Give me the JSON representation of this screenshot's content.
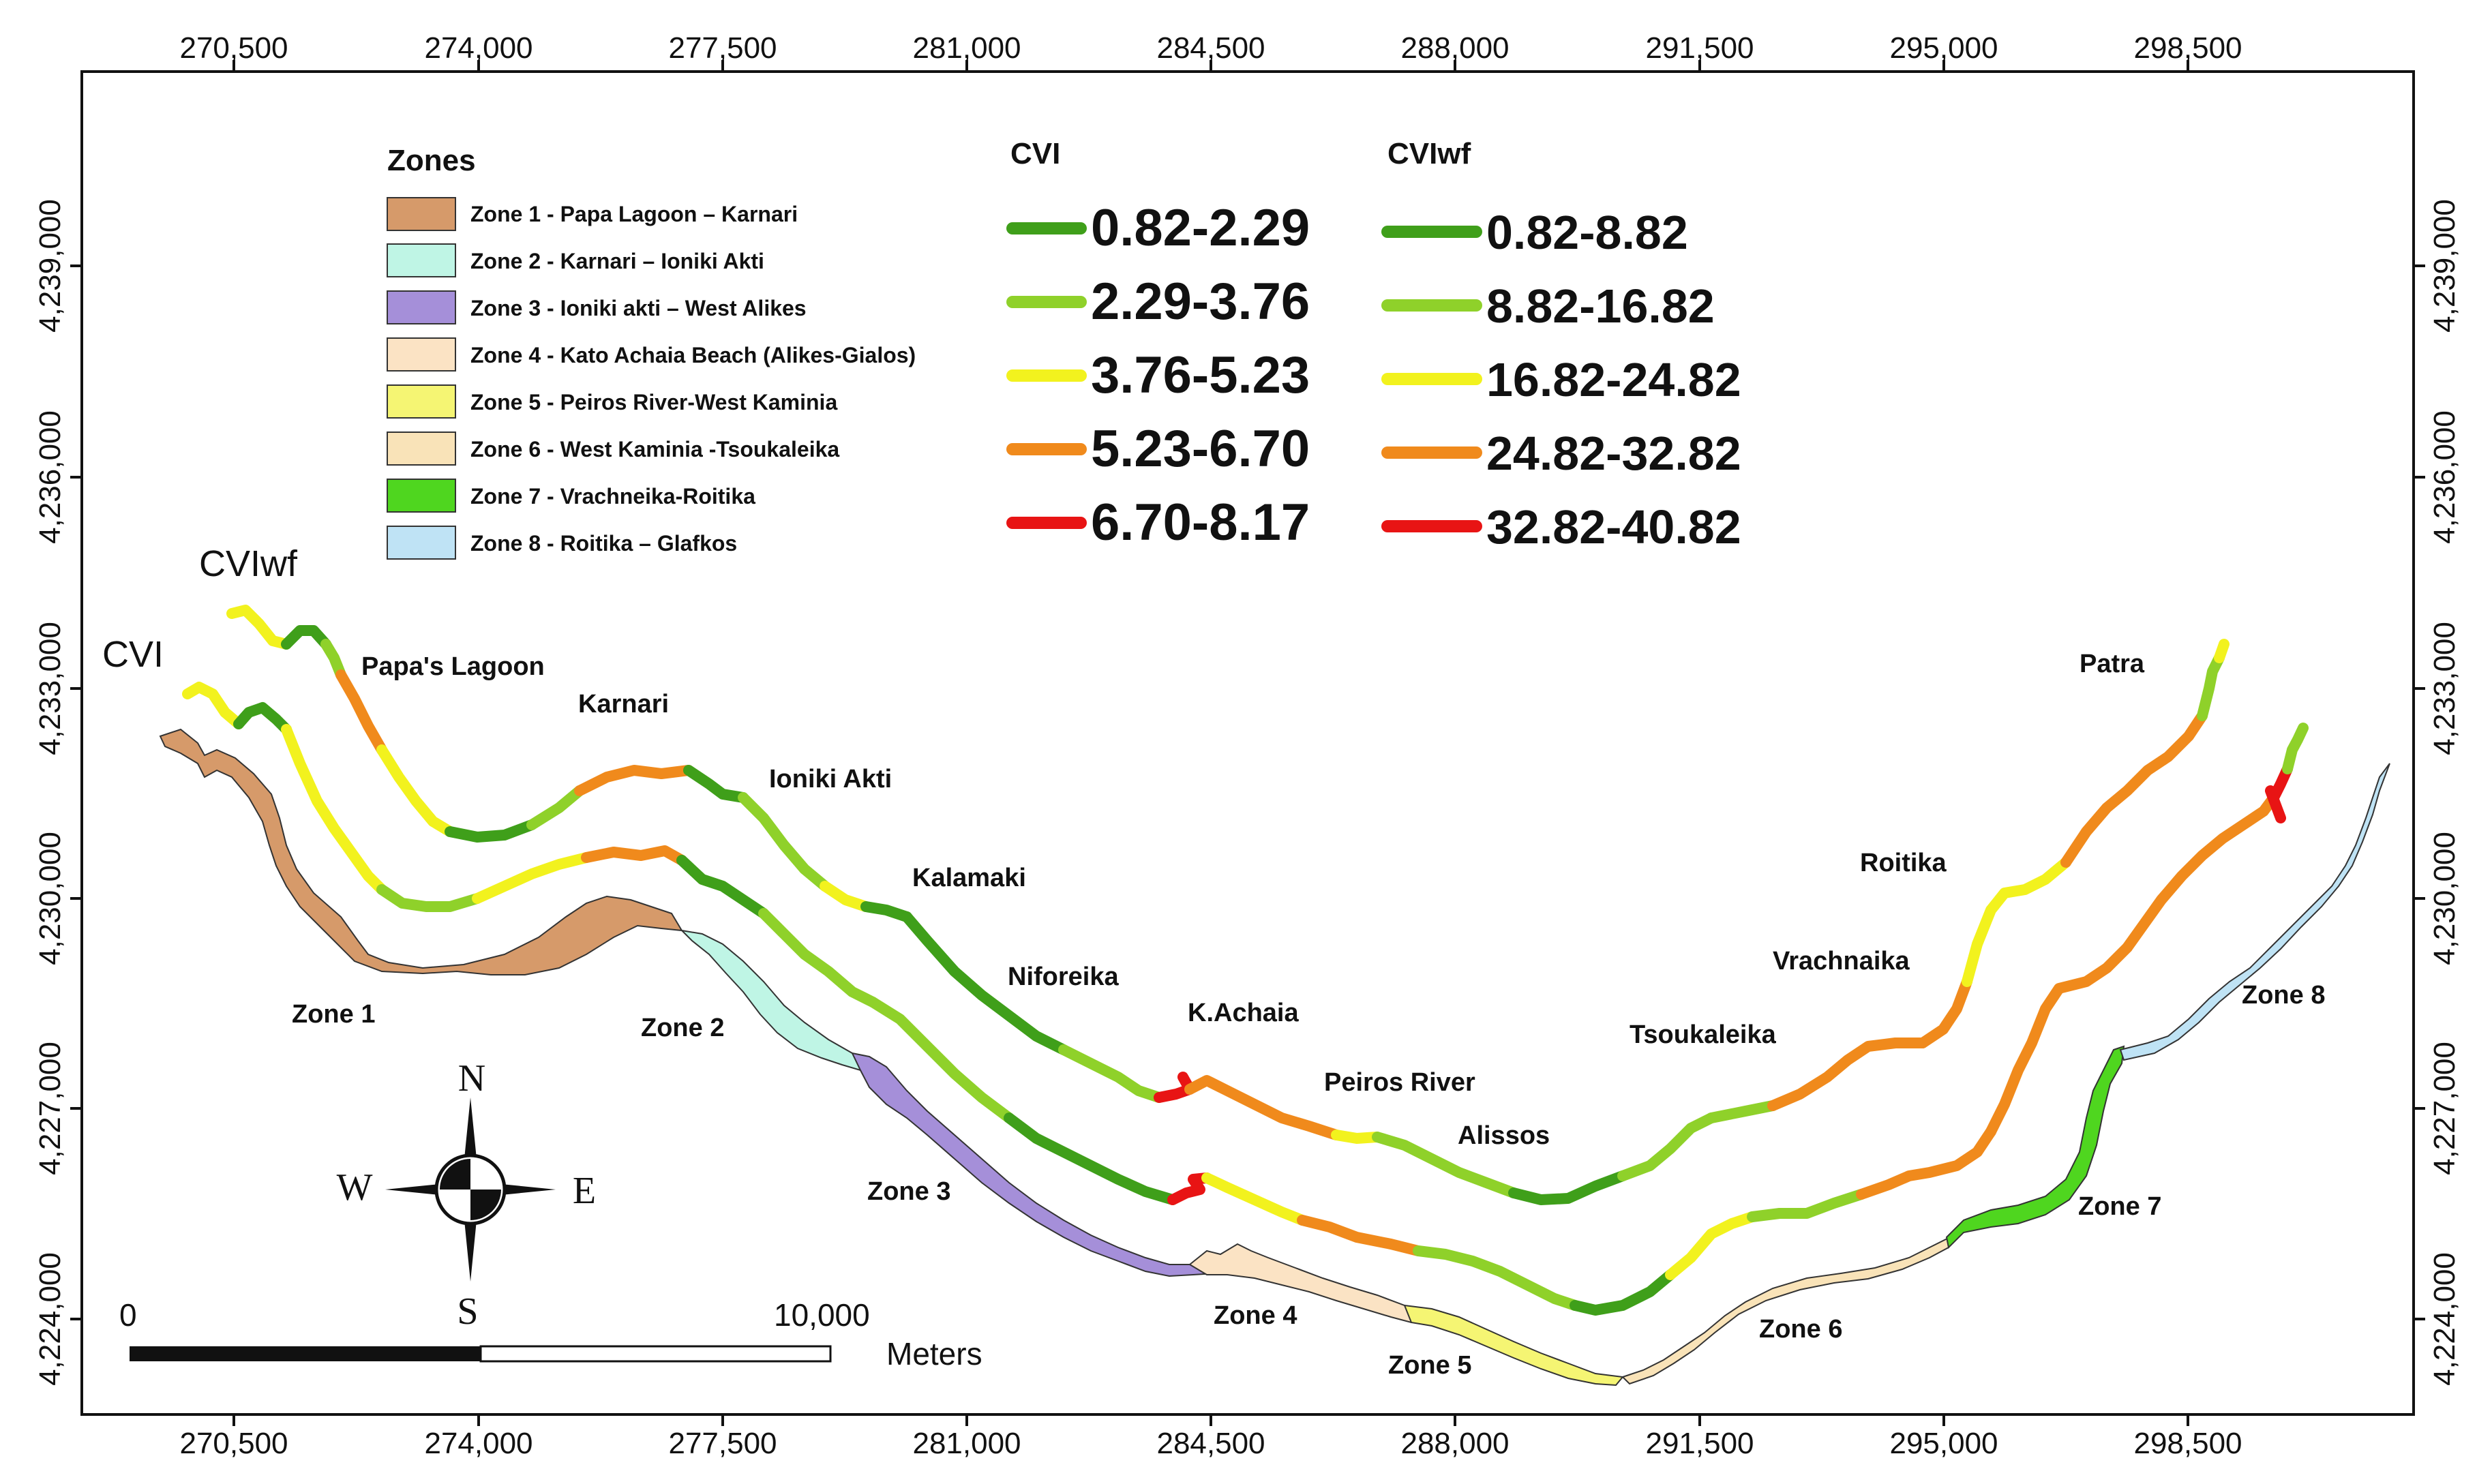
{
  "axes": {
    "x_ticks": [
      "270,500",
      "274,000",
      "277,500",
      "281,000",
      "284,500",
      "288,000",
      "291,500",
      "295,000",
      "298,500"
    ],
    "y_ticks": [
      "4,239,000",
      "4,236,000",
      "4,233,000",
      "4,230,000",
      "4,227,000",
      "4,224,000"
    ]
  },
  "legend": {
    "zones_title": "Zones",
    "zones": [
      {
        "label": "Zone 1 - Papa Lagoon – Karnari",
        "color": "#d69a6a"
      },
      {
        "label": "Zone 2 - Karnari – Ioniki Akti",
        "color": "#bff5e5"
      },
      {
        "label": "Zone 3 - Ioniki akti – West Alikes",
        "color": "#a58fd9"
      },
      {
        "label": "Zone 4 - Kato Achaia Beach (Alikes-Gialos)",
        "color": "#fbe3c4"
      },
      {
        "label": "Zone 5 - Peiros River-West Kaminia",
        "color": "#f5f573"
      },
      {
        "label": "Zone 6 - West Kaminia -Tsoukaleika",
        "color": "#f9e3b8"
      },
      {
        "label": "Zone 7 - Vrachneika-Roitika",
        "color": "#4fd61f"
      },
      {
        "label": "Zone 8 - Roitika – Glafkos",
        "color": "#bfe3f5"
      }
    ],
    "cvi_title": "CVI",
    "cvi_classes": [
      {
        "label": "0.82-2.29",
        "color": "#3f9f1a"
      },
      {
        "label": "2.29-3.76",
        "color": "#8fd12a"
      },
      {
        "label": "3.76-5.23",
        "color": "#f2f21e"
      },
      {
        "label": "5.23-6.70",
        "color": "#f08a1c"
      },
      {
        "label": "6.70-8.17",
        "color": "#e81414"
      }
    ],
    "cviwf_title": "CVIwf",
    "cviwf_classes": [
      {
        "label": "0.82-8.82",
        "color": "#3f9f1a"
      },
      {
        "label": "8.82-16.82",
        "color": "#8fd12a"
      },
      {
        "label": "16.82-24.82",
        "color": "#f2f21e"
      },
      {
        "label": "24.82-32.82",
        "color": "#f08a1c"
      },
      {
        "label": "32.82-40.82",
        "color": "#e81414"
      }
    ]
  },
  "lines": {
    "cviwf": "CVIwf",
    "cvi": "CVI"
  },
  "places": [
    "Papa's Lagoon",
    "Karnari",
    "Ioniki Akti",
    "Kalamaki",
    "Niforeika",
    "K.Achaia",
    "Peiros River",
    "Alissos",
    "Tsoukaleika",
    "Vrachnaika",
    "Roitika",
    "Patra"
  ],
  "zone_labels": [
    "Zone 1",
    "Zone 2",
    "Zone 3",
    "Zone 4",
    "Zone 5",
    "Zone 6",
    "Zone 7",
    "Zone 8"
  ],
  "compass": {
    "n": "N",
    "s": "S",
    "e": "E",
    "w": "W"
  },
  "scale": {
    "start": "0",
    "end": "10,000",
    "unit": "Meters"
  }
}
